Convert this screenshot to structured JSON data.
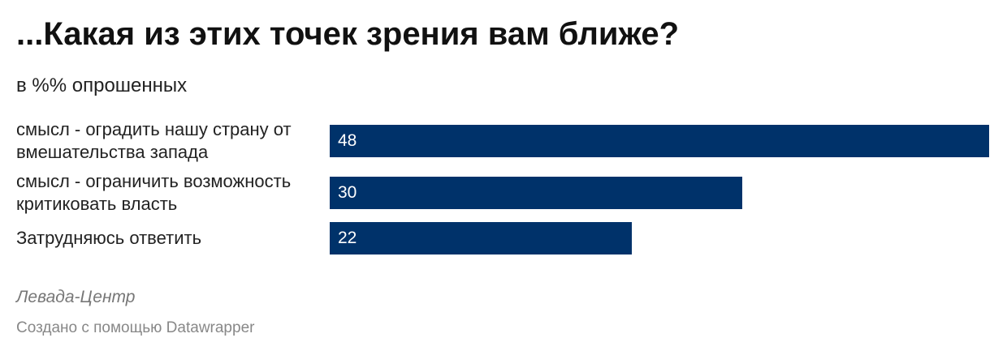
{
  "title": "...Какая из этих точек зрения вам ближе?",
  "subtitle": "в %% опрошенных",
  "colors": {
    "bar": "#00326a",
    "value_text": "#ffffff"
  },
  "chart_data": {
    "type": "bar",
    "orientation": "horizontal",
    "title": "...Какая из этих точек зрения вам ближе?",
    "subtitle": "в %% опрошенных",
    "categories": [
      "смысл - оградить нашу страну от вмешательства запада",
      "смысл - ограничить возможность критиковать власть",
      "Затрудняюсь ответить"
    ],
    "values": [
      48,
      30,
      22
    ],
    "value_labels": [
      "48",
      "30",
      "22"
    ],
    "xlim": [
      0,
      48
    ],
    "grid": false,
    "legend": "none"
  },
  "footer": {
    "source": "Левада-Центр",
    "credit": "Создано с помощью Datawrapper"
  }
}
